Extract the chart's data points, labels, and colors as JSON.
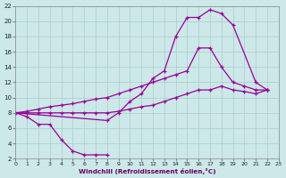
{
  "xlabel": "Windchill (Refroidissement éolien,°C)",
  "bg_color": "#cce8e8",
  "grid_color": "#aacccc",
  "line_color": "#990099",
  "xlim": [
    0,
    23
  ],
  "ylim": [
    2,
    22
  ],
  "xticks": [
    0,
    1,
    2,
    3,
    4,
    5,
    6,
    7,
    8,
    9,
    10,
    11,
    12,
    13,
    14,
    15,
    16,
    17,
    18,
    19,
    20,
    21,
    22,
    23
  ],
  "yticks": [
    2,
    4,
    6,
    8,
    10,
    12,
    14,
    16,
    18,
    20,
    22
  ],
  "curve_A_x": [
    0,
    1,
    2,
    3,
    4,
    5,
    6,
    7,
    8
  ],
  "curve_A_y": [
    8.0,
    7.5,
    6.5,
    6.5,
    4.5,
    3.0,
    2.5,
    2.5,
    2.5
  ],
  "curve_B_x": [
    0,
    8,
    9,
    10,
    11,
    12,
    13,
    14,
    15,
    16,
    17,
    18,
    19,
    21,
    22
  ],
  "curve_B_y": [
    8.0,
    7.0,
    8.0,
    9.5,
    10.5,
    12.5,
    13.5,
    18.0,
    20.5,
    20.5,
    21.5,
    21.0,
    19.5,
    12.0,
    11.0
  ],
  "curve_C_x": [
    0,
    1,
    2,
    3,
    4,
    5,
    6,
    7,
    8,
    9,
    10,
    11,
    12,
    13,
    14,
    15,
    16,
    17,
    18,
    19,
    20,
    21,
    22
  ],
  "curve_C_y": [
    8.0,
    8.2,
    8.5,
    8.8,
    9.0,
    9.2,
    9.5,
    9.8,
    10.0,
    10.5,
    11.0,
    11.5,
    12.0,
    12.5,
    13.0,
    13.5,
    16.5,
    16.5,
    14.0,
    12.0,
    11.5,
    11.0,
    11.0
  ],
  "curve_D_x": [
    0,
    1,
    2,
    3,
    4,
    5,
    6,
    7,
    8,
    9,
    10,
    11,
    12,
    13,
    14,
    15,
    16,
    17,
    18,
    19,
    20,
    21,
    22
  ],
  "curve_D_y": [
    8.0,
    8.0,
    8.0,
    8.0,
    8.0,
    8.0,
    8.0,
    8.0,
    8.0,
    8.2,
    8.5,
    8.8,
    9.0,
    9.5,
    10.0,
    10.5,
    11.0,
    11.0,
    11.5,
    11.0,
    10.8,
    10.5,
    11.0
  ]
}
